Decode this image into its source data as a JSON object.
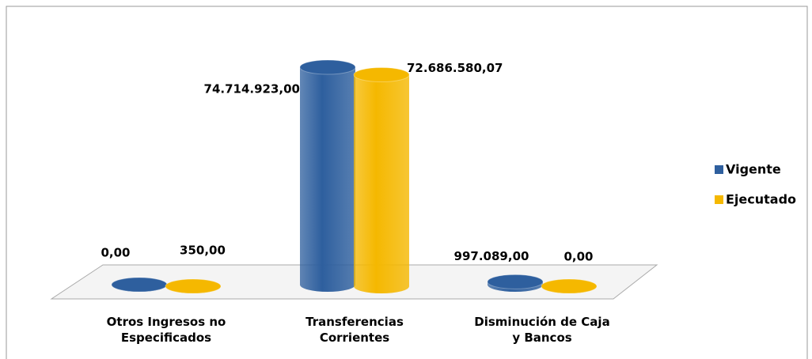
{
  "chart_data": {
    "type": "bar3d",
    "categories": [
      "Otros Ingresos no Especificados",
      "Transferencias Corrientes",
      "Disminución de Caja y Bancos"
    ],
    "series": [
      {
        "name": "Vigente",
        "color": "#2e5f9e",
        "values": [
          0,
          74714923,
          997089
        ],
        "value_labels": [
          "0,00",
          "74.714.923,00",
          "997.089,00"
        ]
      },
      {
        "name": "Ejecutado",
        "color": "#f5b800",
        "values": [
          350,
          72686580.07,
          0
        ],
        "value_labels": [
          "350,00",
          "72.686.580,07",
          "0,00"
        ]
      }
    ],
    "legend": "right"
  }
}
